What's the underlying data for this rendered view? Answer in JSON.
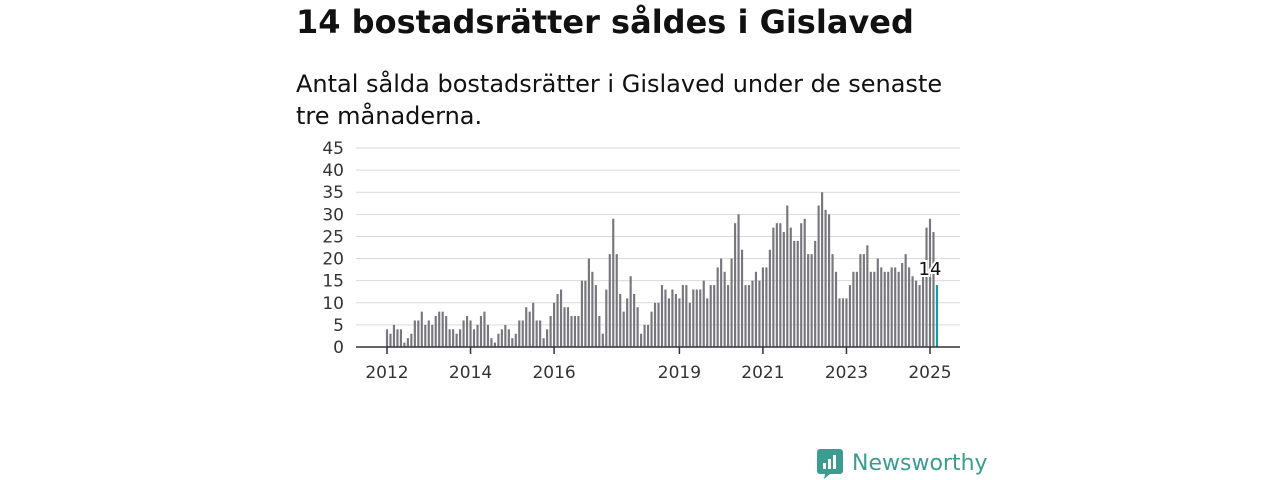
{
  "title": "14 bostadsrätter såldes i Gislaved",
  "subtitle": "Antal sålda bostadsrätter i Gislaved under de senaste tre månaderna.",
  "brand": {
    "name": "Newsworthy",
    "icon": "newsworthy-logo-icon"
  },
  "colors": {
    "bar": "#77777d",
    "highlight": "#1a9a9a",
    "grid": "#d9d9d9",
    "axis": "#333333",
    "brand": "#3c9c92"
  },
  "chart_data": {
    "type": "bar",
    "title": "",
    "xlabel": "",
    "ylabel": "",
    "ylim": [
      0,
      45
    ],
    "yticks": [
      0,
      5,
      10,
      15,
      20,
      25,
      30,
      35,
      40,
      45
    ],
    "grid": true,
    "legend": "none",
    "x_start": "2012-01",
    "x_end": "2025-01",
    "xtick_labels": [
      {
        "label": "2012",
        "month": "2012-01"
      },
      {
        "label": "2014",
        "month": "2014-01"
      },
      {
        "label": "2016",
        "month": "2016-01"
      },
      {
        "label": "2019",
        "month": "2019-01"
      },
      {
        "label": "2021",
        "month": "2021-01"
      },
      {
        "label": "2023",
        "month": "2023-01"
      },
      {
        "label": "2025",
        "month": "2025-01"
      }
    ],
    "values": [
      4,
      3,
      5,
      4,
      4,
      1,
      2,
      3,
      6,
      6,
      8,
      5,
      6,
      5,
      7,
      8,
      8,
      7,
      4,
      4,
      3,
      4,
      6,
      7,
      6,
      4,
      5,
      7,
      8,
      5,
      2,
      1,
      3,
      4,
      5,
      4,
      2,
      3,
      6,
      6,
      9,
      8,
      10,
      6,
      6,
      2,
      4,
      7,
      10,
      12,
      13,
      9,
      9,
      7,
      7,
      7,
      15,
      15,
      20,
      17,
      14,
      7,
      3,
      13,
      21,
      29,
      21,
      12,
      8,
      11,
      16,
      12,
      9,
      3,
      5,
      5,
      8,
      10,
      10,
      14,
      13,
      11,
      13,
      12,
      11,
      14,
      14,
      10,
      13,
      13,
      13,
      15,
      11,
      14,
      14,
      18,
      20,
      17,
      14,
      20,
      28,
      30,
      22,
      14,
      14,
      15,
      17,
      15,
      18,
      18,
      22,
      27,
      28,
      28,
      26,
      32,
      27,
      24,
      24,
      28,
      29,
      21,
      21,
      24,
      32,
      35,
      31,
      30,
      21,
      17,
      11,
      11,
      11,
      14,
      17,
      17,
      21,
      21,
      23,
      17,
      17,
      20,
      18,
      17,
      17,
      18,
      18,
      17,
      19,
      21,
      18,
      16,
      15,
      14,
      19,
      27,
      29,
      26,
      14
    ],
    "highlight": {
      "month": "2025-01",
      "value": 14,
      "label": "14"
    }
  }
}
